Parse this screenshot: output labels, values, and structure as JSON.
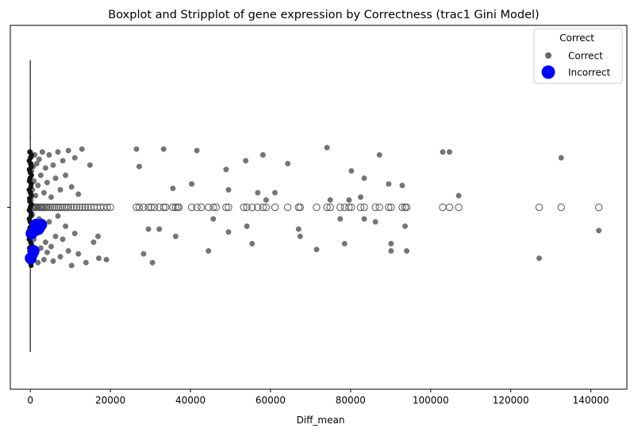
{
  "chart_data": {
    "type": "scatter",
    "title": "Boxplot and Stripplot of gene expression by Correctness (trac1 Gini Model)",
    "xlabel": "Diff_mean",
    "ylabel": "",
    "xlim": [
      -5000,
      149000
    ],
    "x_ticks": [
      0,
      20000,
      40000,
      60000,
      80000,
      100000,
      120000,
      140000
    ],
    "x_tick_labels": [
      "0",
      "20000",
      "40000",
      "60000",
      "80000",
      "100000",
      "120000",
      "140000"
    ],
    "y_categories": [
      ""
    ],
    "grid": false,
    "legend": {
      "title": "Correct",
      "placement": "top-right",
      "entries": [
        {
          "label": "Correct",
          "color": "#666666"
        },
        {
          "label": "Incorrect",
          "color": "#0000ff"
        }
      ]
    },
    "boxplot": {
      "q1": 0,
      "median": 0,
      "q3": 0,
      "whisker_low": 0,
      "whisker_high": 0,
      "outliers": [
        300,
        500,
        700,
        900,
        1100,
        1300,
        1500,
        1800,
        2100,
        2400,
        2700,
        3000,
        3300,
        3700,
        4100,
        4500,
        5000,
        5500,
        6000,
        6500,
        7000,
        7500,
        8000,
        8500,
        9000,
        9500,
        10200,
        10900,
        11600,
        12300,
        13000,
        13700,
        14400,
        15100,
        15900,
        16700,
        17500,
        18300,
        19200,
        20000,
        26500,
        27200,
        28300,
        29500,
        30200,
        31000,
        32200,
        33300,
        33800,
        35600,
        36300,
        36800,
        37100,
        40300,
        41600,
        42700,
        44500,
        45700,
        46400,
        48900,
        49500,
        53300,
        54100,
        55400,
        56800,
        58100,
        58900,
        61100,
        64300,
        67000,
        67400,
        71500,
        74100,
        74900,
        77400,
        78500,
        79600,
        80200,
        82500,
        83400,
        86200,
        87200,
        89500,
        90100,
        92900,
        93600,
        94000,
        103000,
        104700,
        107000,
        127100,
        132600,
        142000
      ],
      "color": "#000000"
    },
    "series": [
      {
        "name": "Correct",
        "color": "#666666",
        "points": [
          {
            "x": 0,
            "y": 0.1
          },
          {
            "x": 0,
            "y": -0.1
          },
          {
            "x": 0,
            "y": 0.2
          },
          {
            "x": 0,
            "y": -0.2
          },
          {
            "x": 0,
            "y": 0.3
          },
          {
            "x": 0,
            "y": -0.3
          },
          {
            "x": 0,
            "y": 0.38
          },
          {
            "x": 0,
            "y": -0.38
          },
          {
            "x": 200,
            "y": 0.05
          },
          {
            "x": 200,
            "y": -0.15
          },
          {
            "x": 300,
            "y": 0.25
          },
          {
            "x": 300,
            "y": -0.25
          },
          {
            "x": 400,
            "y": 0.35
          },
          {
            "x": 400,
            "y": -0.35
          },
          {
            "x": 500,
            "y": 0.12
          },
          {
            "x": 500,
            "y": -0.05
          },
          {
            "x": 700,
            "y": 0.28
          },
          {
            "x": 700,
            "y": -0.3
          },
          {
            "x": 900,
            "y": 0.18
          },
          {
            "x": 900,
            "y": -0.22
          },
          {
            "x": 1100,
            "y": 0.36
          },
          {
            "x": 1100,
            "y": -0.12
          },
          {
            "x": 1300,
            "y": 0.08
          },
          {
            "x": 1300,
            "y": -0.33
          },
          {
            "x": 1600,
            "y": 0.3
          },
          {
            "x": 1600,
            "y": -0.18
          },
          {
            "x": 1900,
            "y": 0.15
          },
          {
            "x": 1900,
            "y": -0.38
          },
          {
            "x": 2200,
            "y": 0.33
          },
          {
            "x": 2200,
            "y": -0.08
          },
          {
            "x": 2600,
            "y": 0.22
          },
          {
            "x": 2600,
            "y": -0.28
          },
          {
            "x": 3000,
            "y": 0.38
          },
          {
            "x": 3000,
            "y": -0.15
          },
          {
            "x": 3400,
            "y": 0.1
          },
          {
            "x": 3400,
            "y": -0.36
          },
          {
            "x": 3800,
            "y": 0.27
          },
          {
            "x": 3800,
            "y": -0.24
          },
          {
            "x": 4200,
            "y": 0.17
          },
          {
            "x": 4200,
            "y": -0.31
          },
          {
            "x": 4700,
            "y": 0.36
          },
          {
            "x": 4700,
            "y": -0.1
          },
          {
            "x": 5200,
            "y": 0.07
          },
          {
            "x": 5200,
            "y": -0.27
          },
          {
            "x": 5700,
            "y": 0.29
          },
          {
            "x": 5700,
            "y": -0.37
          },
          {
            "x": 6300,
            "y": 0.2
          },
          {
            "x": 6300,
            "y": -0.2
          },
          {
            "x": 6900,
            "y": 0.38
          },
          {
            "x": 6900,
            "y": -0.06
          },
          {
            "x": 7500,
            "y": 0.12
          },
          {
            "x": 7500,
            "y": -0.34
          },
          {
            "x": 8100,
            "y": 0.32
          },
          {
            "x": 8100,
            "y": -0.22
          },
          {
            "x": 8800,
            "y": 0.22
          },
          {
            "x": 8800,
            "y": -0.13
          },
          {
            "x": 9500,
            "y": 0.39
          },
          {
            "x": 9500,
            "y": -0.3
          },
          {
            "x": 10300,
            "y": 0.14
          },
          {
            "x": 10300,
            "y": -0.4
          },
          {
            "x": 11100,
            "y": 0.34
          },
          {
            "x": 11100,
            "y": -0.18
          },
          {
            "x": 12000,
            "y": 0.09
          },
          {
            "x": 12000,
            "y": -0.32
          },
          {
            "x": 12900,
            "y": 0.4
          },
          {
            "x": 13900,
            "y": -0.38
          },
          {
            "x": 14900,
            "y": 0.29
          },
          {
            "x": 15800,
            "y": -0.24
          },
          {
            "x": 16900,
            "y": -0.2
          },
          {
            "x": 17100,
            "y": -0.35
          },
          {
            "x": 19000,
            "y": -0.36
          },
          {
            "x": 26500,
            "y": 0.4
          },
          {
            "x": 27200,
            "y": 0.28
          },
          {
            "x": 28300,
            "y": -0.32
          },
          {
            "x": 29500,
            "y": -0.15
          },
          {
            "x": 30500,
            "y": -0.38
          },
          {
            "x": 32200,
            "y": -0.15
          },
          {
            "x": 33300,
            "y": 0.4
          },
          {
            "x": 35600,
            "y": 0.13
          },
          {
            "x": 36300,
            "y": -0.2
          },
          {
            "x": 40300,
            "y": 0.16
          },
          {
            "x": 41600,
            "y": 0.39
          },
          {
            "x": 44500,
            "y": -0.3
          },
          {
            "x": 45700,
            "y": -0.08
          },
          {
            "x": 48900,
            "y": 0.26
          },
          {
            "x": 49500,
            "y": 0.12
          },
          {
            "x": 49500,
            "y": -0.17
          },
          {
            "x": 53800,
            "y": 0.32
          },
          {
            "x": 54100,
            "y": -0.13
          },
          {
            "x": 55400,
            "y": -0.25
          },
          {
            "x": 56800,
            "y": 0.1
          },
          {
            "x": 58100,
            "y": 0.36
          },
          {
            "x": 58900,
            "y": 0.05
          },
          {
            "x": 61100,
            "y": 0.1
          },
          {
            "x": 64300,
            "y": 0.3
          },
          {
            "x": 67000,
            "y": -0.15
          },
          {
            "x": 67400,
            "y": -0.2
          },
          {
            "x": 71500,
            "y": -0.29
          },
          {
            "x": 74100,
            "y": 0.41
          },
          {
            "x": 74900,
            "y": 0.05
          },
          {
            "x": 77400,
            "y": -0.08
          },
          {
            "x": 78500,
            "y": -0.25
          },
          {
            "x": 79600,
            "y": 0.05
          },
          {
            "x": 80200,
            "y": 0.25
          },
          {
            "x": 82500,
            "y": 0.07
          },
          {
            "x": 83400,
            "y": 0.2
          },
          {
            "x": 83400,
            "y": -0.08
          },
          {
            "x": 86200,
            "y": -0.1
          },
          {
            "x": 87200,
            "y": 0.36
          },
          {
            "x": 89500,
            "y": 0.16
          },
          {
            "x": 90100,
            "y": -0.25
          },
          {
            "x": 90100,
            "y": -0.3
          },
          {
            "x": 92900,
            "y": 0.15
          },
          {
            "x": 93600,
            "y": -0.13
          },
          {
            "x": 94000,
            "y": -0.3
          },
          {
            "x": 103000,
            "y": 0.38
          },
          {
            "x": 104700,
            "y": 0.38
          },
          {
            "x": 107000,
            "y": 0.08
          },
          {
            "x": 127100,
            "y": -0.35
          },
          {
            "x": 132600,
            "y": 0.34
          },
          {
            "x": 142000,
            "y": -0.16
          }
        ]
      },
      {
        "name": "Incorrect",
        "color": "#0000ff",
        "points": [
          {
            "x": 300,
            "y": -0.18
          },
          {
            "x": 800,
            "y": -0.3
          },
          {
            "x": 1400,
            "y": -0.12
          },
          {
            "x": 2000,
            "y": -0.15
          },
          {
            "x": 2700,
            "y": -0.12
          },
          {
            "x": 100,
            "y": -0.35
          }
        ]
      }
    ]
  }
}
